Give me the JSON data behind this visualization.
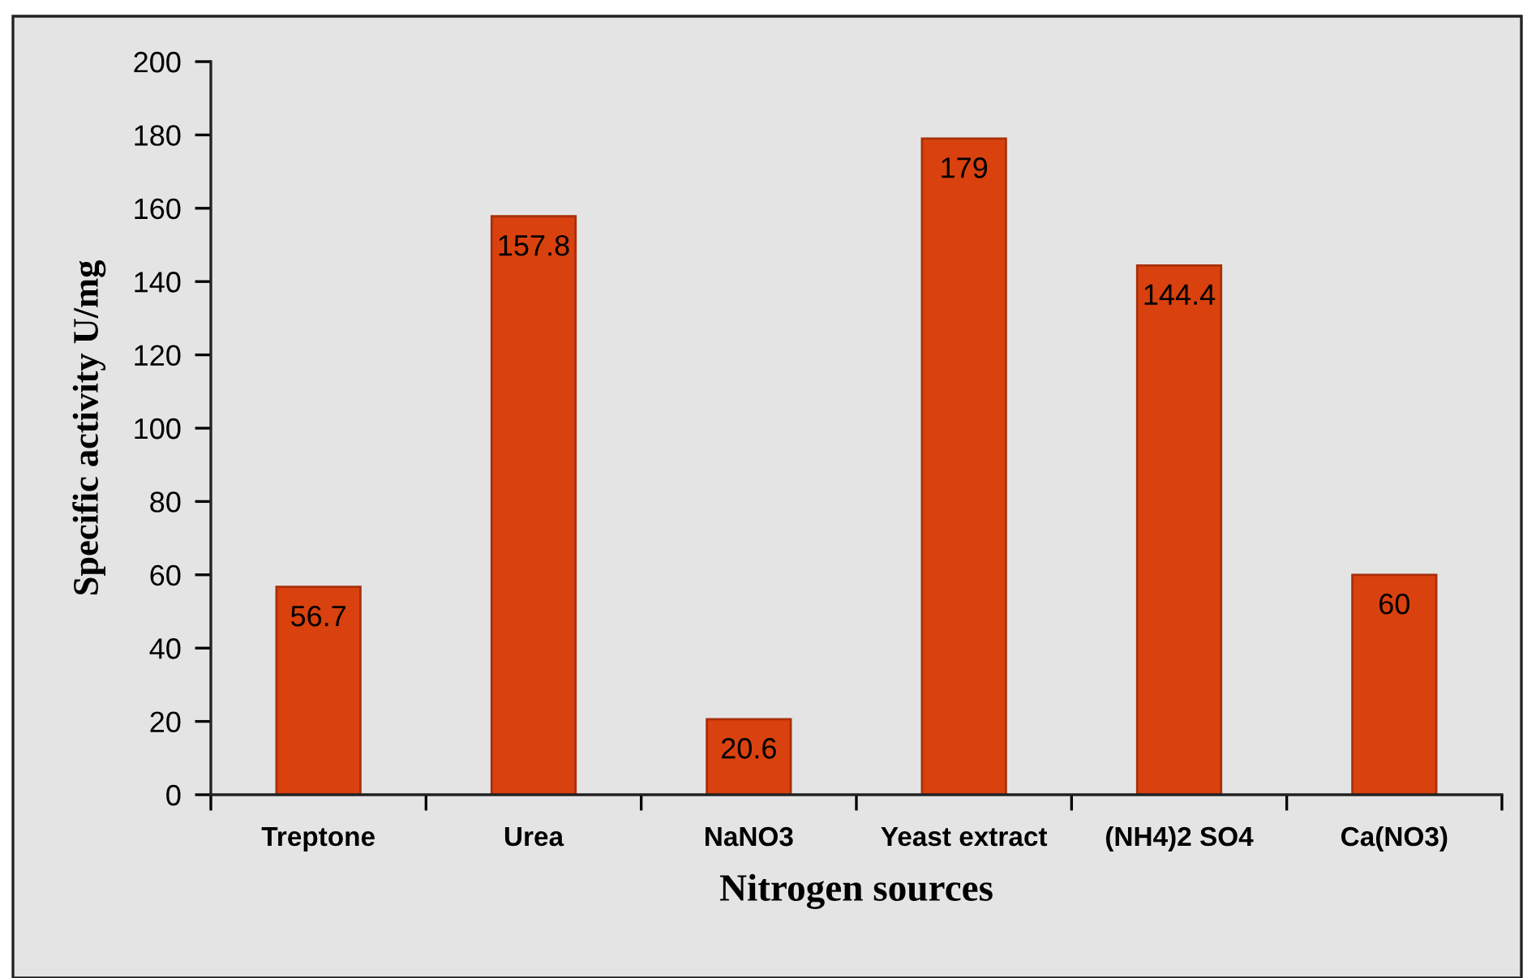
{
  "chart_data": {
    "type": "bar",
    "xlabel": "Nitrogen sources",
    "ylabel": "Specific activity U/mg",
    "categories": [
      "Treptone",
      "Urea",
      "NaNO3",
      "Yeast extract",
      "(NH4)2 SO4",
      "Ca(NO3)"
    ],
    "values": [
      56.7,
      157.8,
      20.6,
      179,
      144.4,
      60
    ],
    "color": "#d9410f",
    "ylim": [
      0,
      200
    ],
    "yticks": [
      0,
      20,
      40,
      60,
      80,
      100,
      120,
      140,
      160,
      180,
      200
    ],
    "data_labels": true,
    "grid": false,
    "legend": false
  }
}
